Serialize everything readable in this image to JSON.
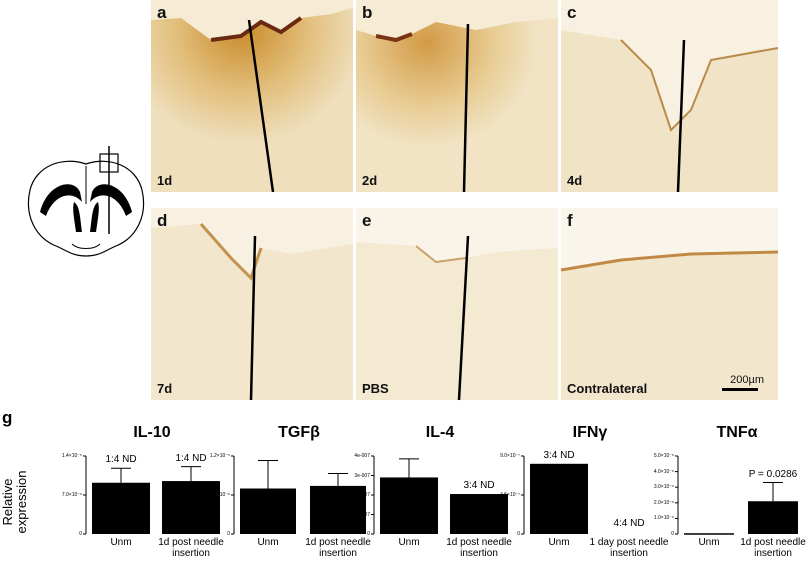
{
  "panels": [
    {
      "letter": "a",
      "time": "1d"
    },
    {
      "letter": "b",
      "time": "2d"
    },
    {
      "letter": "c",
      "time": "4d"
    },
    {
      "letter": "d",
      "time": "7d"
    },
    {
      "letter": "e",
      "time": "PBS"
    },
    {
      "letter": "f",
      "time": "Contralateral"
    }
  ],
  "scale_bar": "200µm",
  "section_g_label": "g",
  "y_axis_label": "Relative expression",
  "chart_data": [
    {
      "type": "bar",
      "title": "IL-10",
      "categories": [
        "Unm",
        "1d post needle insertion"
      ],
      "values": [
        9.2e-06,
        9.5e-06
      ],
      "errors": [
        2.6e-06,
        2.6e-06
      ],
      "ylim": [
        0,
        1.4e-05
      ],
      "yticks": [
        "1.4×10⁻⁵",
        "7.0×10⁻⁶",
        "0"
      ],
      "annotations": [
        "1:4 ND",
        "1:4 ND"
      ]
    },
    {
      "type": "bar",
      "title": "TGFβ",
      "categories": [
        "Unm",
        "1d post needle insertion"
      ],
      "values": [
        7e-06,
        7.4e-06
      ],
      "errors": [
        4.3e-06,
        1.9e-06
      ],
      "ylim": [
        0,
        1.2e-05
      ],
      "yticks": [
        "1.2×10⁻⁵",
        "6.0×10⁻⁶",
        "0"
      ],
      "annotations": [
        "",
        ""
      ]
    },
    {
      "type": "bar",
      "title": "IL-4",
      "categories": [
        "Unm",
        "1d post needle insertion"
      ],
      "values": [
        2.9e-07,
        2.05e-07
      ],
      "errors": [
        9.5e-08,
        0
      ],
      "ylim": [
        0,
        4e-07
      ],
      "yticks": [
        "4e-007",
        "3e-007",
        "2e-007",
        "1e-007",
        "0"
      ],
      "annotations": [
        "",
        "3:4 ND"
      ]
    },
    {
      "type": "bar",
      "title": "IFNγ",
      "categories": [
        "Unm",
        "1 day post needle insertion"
      ],
      "values": [
        8.1e-07,
        0
      ],
      "errors": [
        0,
        0
      ],
      "ylim": [
        0,
        9e-07
      ],
      "yticks": [
        "9.0×10⁻⁷",
        "4.5×10⁻⁷",
        "0"
      ],
      "annotations": [
        "3:4 ND",
        "4:4 ND"
      ]
    },
    {
      "type": "bar",
      "title": "TNFα",
      "categories": [
        "Unm",
        "1d post needle insertion"
      ],
      "values": [
        5e-08,
        2.1e-06
      ],
      "errors": [
        0,
        1.2e-06
      ],
      "ylim": [
        0,
        5e-06
      ],
      "yticks": [
        "5.0×10⁻⁶",
        "4.0×10⁻⁶",
        "3.0×10⁻⁶",
        "2.0×10⁻⁶",
        "1.0×10⁻⁶",
        "0"
      ],
      "annotations": [
        "",
        "P = 0.0286"
      ]
    }
  ]
}
